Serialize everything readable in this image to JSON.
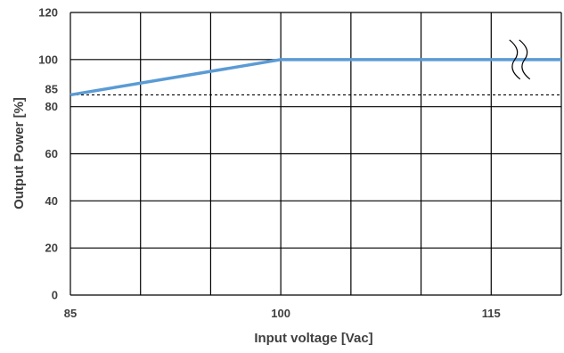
{
  "chart_data": {
    "type": "line",
    "xlabel": "Input voltage [Vac]",
    "ylabel": "Output Power [%]",
    "xlim": [
      85,
      120
    ],
    "ylim": [
      0,
      120
    ],
    "x_ticks": [
      85,
      100,
      115
    ],
    "x_tick_labels": [
      "85",
      "100",
      "115"
    ],
    "x_gridlines": [
      85,
      90,
      95,
      100,
      105,
      110,
      115,
      120
    ],
    "y_ticks": [
      0,
      20,
      40,
      60,
      80,
      100,
      120
    ],
    "y_tick_labels": [
      "0",
      "20",
      "40",
      "60",
      "80",
      "100",
      "120"
    ],
    "grid": true,
    "reference_line": {
      "value": 85,
      "label": "85",
      "style": "dashed",
      "color": "#000000"
    },
    "axis_break": {
      "x": 117,
      "y": 100,
      "symbol": "wavy-double-line"
    },
    "series": [
      {
        "x": [
          85,
          100,
          120
        ],
        "y": [
          85,
          100,
          100
        ],
        "color": "#5B9BD5"
      }
    ]
  }
}
